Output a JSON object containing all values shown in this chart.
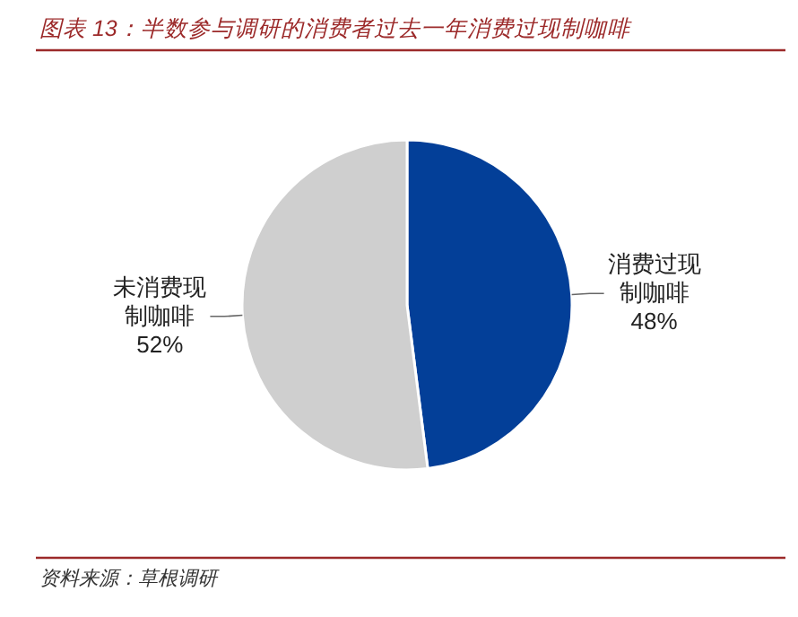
{
  "chart_data": {
    "type": "pie",
    "title": "图表 13：半数参与调研的消费者过去一年消费过现制咖啡",
    "categories": [
      "消费过现制咖啡",
      "未消费现制咖啡"
    ],
    "values": [
      48,
      52
    ],
    "colors": [
      "#033f98",
      "#cfcfcf"
    ],
    "value_labels": [
      "48%",
      "52%"
    ],
    "annotations": [
      "资料来源：草根调研"
    ]
  }
}
